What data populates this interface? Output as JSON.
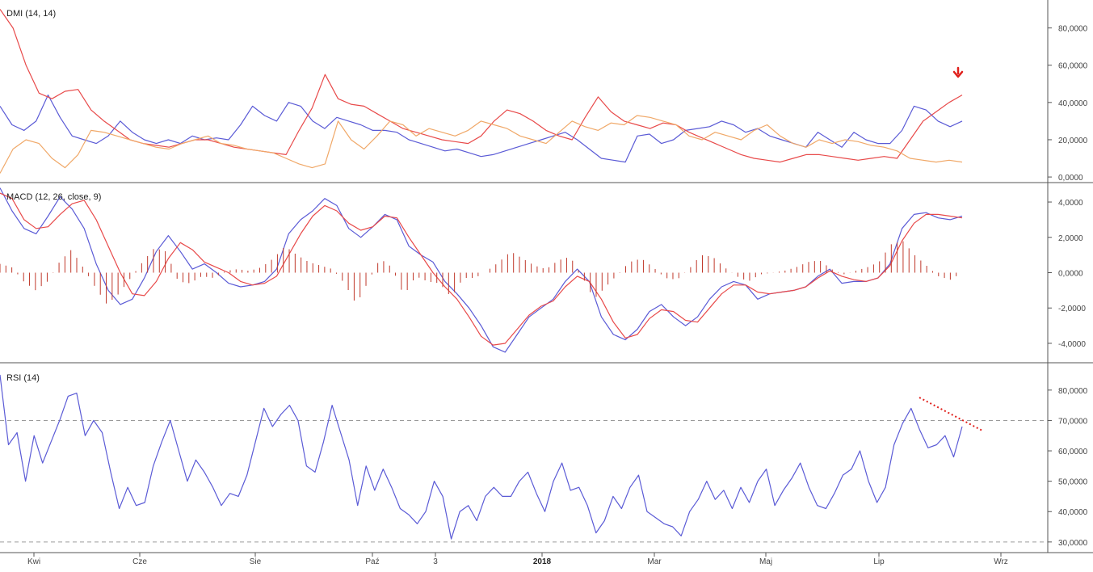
{
  "colors": {
    "blue": "#5b5bd6",
    "red": "#e84a4a",
    "orange": "#f0a868",
    "hist": "#c0392b",
    "grid": "#9a9a9a",
    "axis": "#555555",
    "annotation": "#e0201c"
  },
  "chart_data": [
    {
      "type": "line",
      "title": "DMI (14, 14)",
      "yticks": [
        "80,0000",
        "60,0000",
        "40,0000",
        "20,0000",
        "0,0000"
      ],
      "ytick_values": [
        80,
        60,
        40,
        20,
        0
      ],
      "ylim": [
        -3,
        95
      ],
      "series": [
        {
          "color": "blue",
          "values": [
            38,
            28,
            25,
            30,
            44,
            32,
            22,
            20,
            18,
            22,
            30,
            24,
            20,
            18,
            20,
            18,
            22,
            20,
            21,
            20,
            28,
            38,
            33,
            30,
            40,
            38,
            30,
            26,
            32,
            30,
            28,
            25,
            25,
            24,
            20,
            18,
            16,
            14,
            15,
            13,
            11,
            12,
            14,
            16,
            18,
            20,
            22,
            24,
            20,
            15,
            10,
            9,
            8,
            22,
            23,
            18,
            20,
            25,
            26,
            27,
            30,
            28,
            24,
            26,
            22,
            20,
            18,
            16,
            24,
            20,
            16,
            24,
            20,
            18,
            18,
            25,
            38,
            36,
            30,
            27,
            30
          ]
        },
        {
          "color": "red",
          "values": [
            90,
            80,
            60,
            45,
            42,
            46,
            47,
            36,
            30,
            25,
            20,
            18,
            17,
            16,
            18,
            20,
            20,
            18,
            16,
            15,
            14,
            13,
            12,
            25,
            37,
            55,
            42,
            39,
            38,
            34,
            30,
            26,
            24,
            22,
            20,
            19,
            18,
            22,
            30,
            36,
            34,
            30,
            25,
            22,
            20,
            32,
            43,
            35,
            30,
            28,
            26,
            29,
            28,
            24,
            21,
            18,
            15,
            12,
            10,
            9,
            8,
            10,
            12,
            12,
            11,
            10,
            9,
            10,
            11,
            10,
            20,
            30,
            35,
            40,
            44
          ]
        },
        {
          "color": "orange",
          "values": [
            2,
            15,
            20,
            18,
            10,
            5,
            12,
            25,
            24,
            22,
            20,
            18,
            16,
            15,
            18,
            20,
            22,
            18,
            17,
            15,
            14,
            13,
            10,
            7,
            5,
            7,
            30,
            20,
            15,
            22,
            30,
            28,
            22,
            26,
            24,
            22,
            25,
            30,
            28,
            26,
            22,
            20,
            18,
            24,
            30,
            27,
            25,
            29,
            28,
            33,
            32,
            30,
            28,
            22,
            20,
            24,
            22,
            20,
            25,
            28,
            22,
            18,
            16,
            20,
            18,
            20,
            19,
            17,
            16,
            14,
            10,
            9,
            8,
            9,
            8
          ]
        }
      ]
    },
    {
      "type": "line+histogram",
      "title": "MACD (12, 26, close, 9)",
      "yticks": [
        "4,0000",
        "2,0000",
        "0,0000",
        "-2,0000",
        "-4,0000"
      ],
      "ytick_values": [
        4,
        2,
        0,
        -2,
        -4
      ],
      "ylim": [
        -5.1,
        5.1
      ],
      "series": [
        {
          "color": "blue",
          "values": [
            4.8,
            3.5,
            2.5,
            2.2,
            3.2,
            4.3,
            3.6,
            2.5,
            0.5,
            -1.0,
            -1.8,
            -1.5,
            -0.3,
            1.2,
            2.1,
            1.2,
            0.2,
            0.5,
            0.0,
            -0.6,
            -0.8,
            -0.7,
            -0.5,
            0.2,
            2.2,
            3.0,
            3.5,
            4.2,
            3.8,
            2.5,
            2.0,
            2.6,
            3.3,
            3.0,
            1.5,
            1.0,
            0.6,
            -0.5,
            -1.2,
            -2.0,
            -3.0,
            -4.2,
            -4.5,
            -3.5,
            -2.5,
            -2.0,
            -1.5,
            -0.5,
            0.2,
            -0.5,
            -2.5,
            -3.5,
            -3.8,
            -3.2,
            -2.2,
            -1.8,
            -2.5,
            -3.0,
            -2.5,
            -1.5,
            -0.8,
            -0.5,
            -0.7,
            -1.5,
            -1.2,
            -1.1,
            -1.0,
            -0.8,
            -0.2,
            0.2,
            -0.6,
            -0.5,
            -0.5,
            -0.3,
            0.5,
            2.5,
            3.3,
            3.4,
            3.1,
            3.0,
            3.2
          ]
        },
        {
          "color": "red",
          "values": [
            4.5,
            4.2,
            3.0,
            2.5,
            2.6,
            3.3,
            3.9,
            4.1,
            3.0,
            1.5,
            0.0,
            -1.2,
            -1.3,
            -0.5,
            0.8,
            1.7,
            1.3,
            0.6,
            0.3,
            0.0,
            -0.5,
            -0.7,
            -0.6,
            -0.2,
            1.0,
            2.2,
            3.2,
            3.8,
            3.5,
            2.8,
            2.4,
            2.6,
            3.2,
            3.1,
            2.0,
            1.0,
            0.0,
            -0.8,
            -1.5,
            -2.5,
            -3.6,
            -4.1,
            -4.0,
            -3.2,
            -2.4,
            -1.9,
            -1.6,
            -0.8,
            -0.2,
            -0.5,
            -1.5,
            -2.8,
            -3.7,
            -3.5,
            -2.6,
            -2.1,
            -2.2,
            -2.7,
            -2.8,
            -2.0,
            -1.2,
            -0.7,
            -0.7,
            -1.1,
            -1.2,
            -1.1,
            -1.0,
            -0.8,
            -0.3,
            0.1,
            -0.2,
            -0.4,
            -0.5,
            -0.3,
            0.4,
            1.8,
            2.8,
            3.3,
            3.3,
            3.2,
            3.1
          ]
        },
        {
          "color": "hist",
          "type": "bar",
          "values": [
            0.5,
            0.3,
            -0.5,
            -1.0,
            -0.5,
            0.6,
            1.3,
            0.3,
            -0.8,
            -1.8,
            -1.2,
            -0.3,
            0.6,
            1.4,
            1.2,
            -0.5,
            -0.6,
            -0.2,
            -0.3,
            0.1,
            0.2,
            0.1,
            0.3,
            0.8,
            1.5,
            1.0,
            0.6,
            0.4,
            0.2,
            -0.6,
            -1.8,
            -0.5,
            0.8,
            0.3,
            -1.3,
            -0.2,
            -0.5,
            -0.6,
            -1.4,
            -0.3,
            -0.3,
            0.1,
            0.6,
            1.2,
            0.8,
            0.4,
            0.2,
            0.7,
            0.9,
            -0.2,
            -1.5,
            -0.8,
            -0.1,
            0.6,
            0.8,
            0.3,
            -0.3,
            -0.4,
            0.2,
            1.0,
            0.9,
            0.3,
            -0.2,
            -0.5,
            -0.1,
            0.0,
            0.1,
            0.3,
            0.6,
            0.7,
            0.2,
            -0.1,
            0.1,
            0.3,
            0.6,
            1.6,
            1.8,
            1.0,
            0.4,
            -0.2,
            -0.4,
            0.0
          ]
        }
      ]
    },
    {
      "type": "line",
      "title": "RSI (14)",
      "yticks": [
        "80,0000",
        "70,0000",
        "60,0000",
        "50,0000",
        "40,0000",
        "30,0000"
      ],
      "ytick_values": [
        80,
        70,
        60,
        50,
        40,
        30
      ],
      "ylim": [
        26.5,
        89
      ],
      "hlines": [
        70,
        30
      ],
      "series": [
        {
          "color": "blue",
          "values": [
            85,
            62,
            66,
            50,
            65,
            56,
            63,
            70,
            78,
            79,
            65,
            70,
            66,
            53,
            41,
            48,
            42,
            43,
            55,
            63,
            70,
            60,
            50,
            57,
            53,
            48,
            42,
            46,
            45,
            52,
            63,
            74,
            68,
            72,
            75,
            70,
            55,
            53,
            63,
            75,
            66,
            57,
            42,
            55,
            47,
            54,
            48,
            41,
            39,
            36,
            40,
            50,
            45,
            31,
            40,
            42,
            37,
            45,
            48,
            45,
            45,
            50,
            53,
            46,
            40,
            50,
            56,
            47,
            48,
            42,
            33,
            37,
            45,
            41,
            48,
            52,
            40,
            38,
            36,
            35,
            32,
            40,
            44,
            50,
            44,
            47,
            41,
            48,
            43,
            50,
            54,
            42,
            47,
            51,
            56,
            48,
            42,
            41,
            46,
            52,
            54,
            60,
            50,
            43,
            48,
            62,
            69,
            74,
            67,
            61,
            62,
            65,
            58,
            68
          ]
        }
      ]
    }
  ],
  "x_axis": {
    "labels": [
      "Kwi",
      "Cze",
      "Sie",
      "Paź",
      "3",
      "2018",
      "Mar",
      "Maj",
      "Lip",
      "Wrz"
    ],
    "bold_label": "2018"
  }
}
